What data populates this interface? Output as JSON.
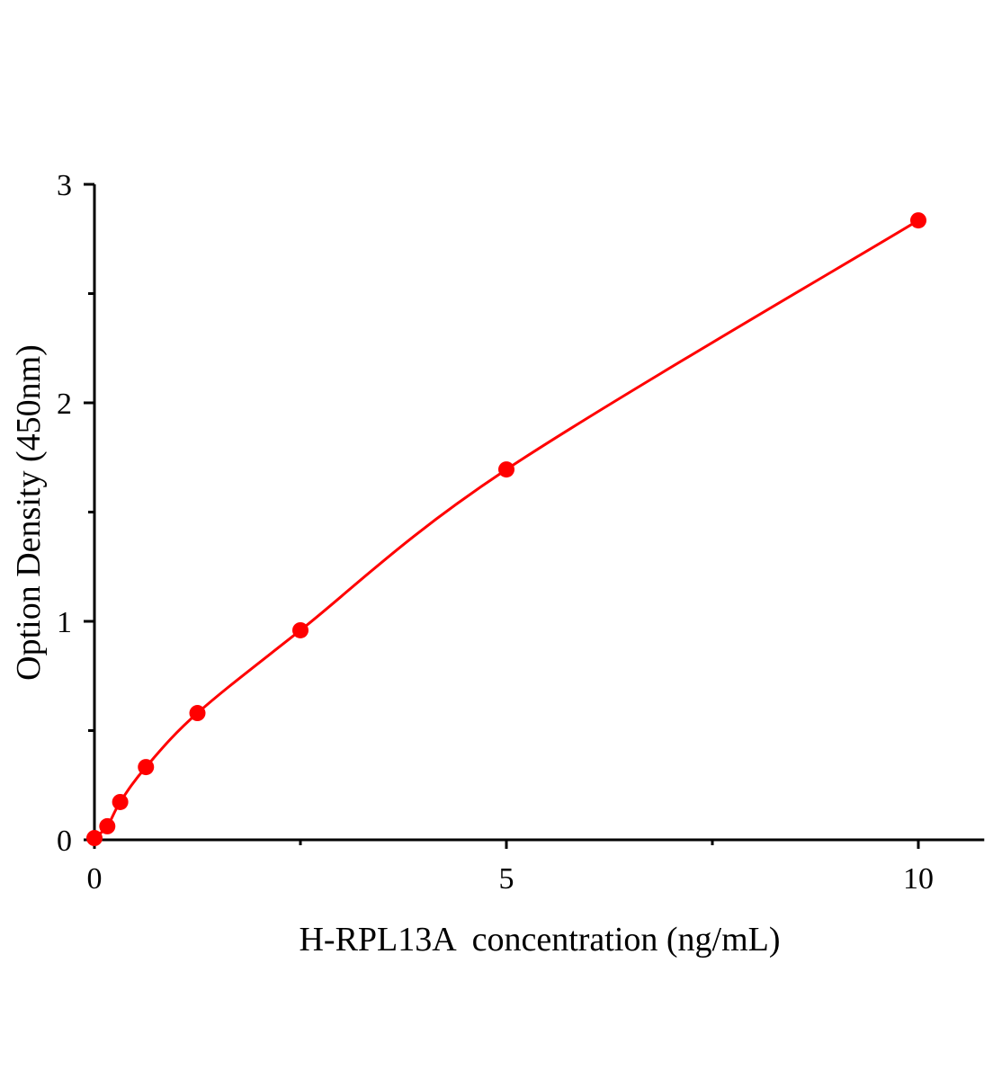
{
  "chart_data": {
    "type": "scatter",
    "xlabel": "H-RPL13A  concentration (ng/mL)",
    "ylabel": "Option Density (450nm)",
    "xlim": [
      0,
      10.8
    ],
    "ylim": [
      0,
      3
    ],
    "x_ticks": [
      "0",
      "5",
      "10"
    ],
    "y_ticks": [
      "0",
      "1",
      "2",
      "3"
    ],
    "grid": false,
    "color": "#ff0000",
    "fit_curve": true,
    "series": [
      {
        "x": [
          0,
          0.156,
          0.3125,
          0.625,
          1.25,
          2.5,
          5,
          10
        ],
        "y": [
          0.008,
          0.062,
          0.173,
          0.333,
          0.58,
          0.959,
          1.695,
          2.835
        ]
      }
    ]
  }
}
